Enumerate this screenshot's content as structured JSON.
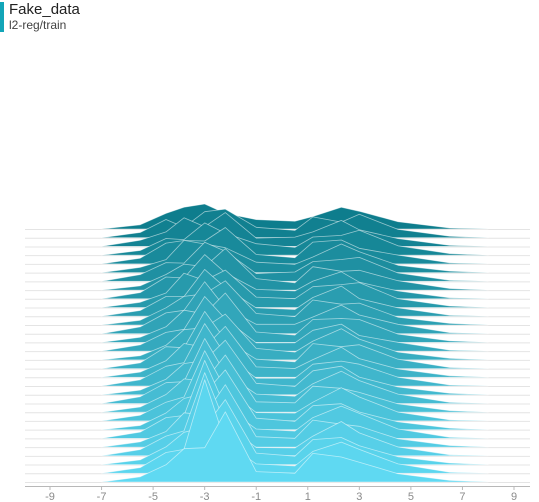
{
  "header": {
    "title": "Fake_data",
    "subtitle": "l2-reg/train",
    "accent_color": "#12a5b8"
  },
  "chart_data": {
    "type": "ridgeline",
    "title": "Fake_data",
    "subtitle": "l2-reg/train",
    "xlim": [
      -10,
      10
    ],
    "x_ticks": [
      -9,
      -7,
      -5,
      -3,
      -1,
      1,
      3,
      5,
      7,
      9
    ],
    "color_back": "#0e7d8d",
    "color_front": "#5fd9f2",
    "stroke_color": "#ffffff",
    "grid": false,
    "series_count": 30,
    "x": [
      -7,
      -5.5,
      -4.5,
      -3.8,
      -3,
      -2.2,
      -1,
      0.5,
      1.2,
      2.3,
      3,
      4.5,
      6.5,
      8
    ],
    "series": [
      {
        "values": [
          0.0,
          0.08,
          0.3,
          0.42,
          0.48,
          0.3,
          0.18,
          0.15,
          0.24,
          0.42,
          0.34,
          0.14,
          0.02,
          0.0
        ]
      },
      {
        "values": [
          0.0,
          0.1,
          0.35,
          0.2,
          0.5,
          0.55,
          0.2,
          0.14,
          0.4,
          0.3,
          0.45,
          0.16,
          0.03,
          0.0
        ]
      },
      {
        "values": [
          0.0,
          0.12,
          0.28,
          0.55,
          0.38,
          0.65,
          0.16,
          0.18,
          0.28,
          0.5,
          0.32,
          0.15,
          0.02,
          0.0
        ]
      },
      {
        "values": [
          0.0,
          0.09,
          0.32,
          0.3,
          0.62,
          0.42,
          0.22,
          0.15,
          0.35,
          0.38,
          0.48,
          0.18,
          0.03,
          0.0
        ]
      },
      {
        "values": [
          0.0,
          0.11,
          0.4,
          0.45,
          0.44,
          0.7,
          0.18,
          0.12,
          0.42,
          0.46,
          0.3,
          0.17,
          0.02,
          0.0
        ]
      },
      {
        "values": [
          0.0,
          0.1,
          0.25,
          0.62,
          0.55,
          0.48,
          0.2,
          0.16,
          0.3,
          0.55,
          0.4,
          0.14,
          0.03,
          0.0
        ]
      },
      {
        "values": [
          0.0,
          0.13,
          0.36,
          0.35,
          0.75,
          0.58,
          0.15,
          0.18,
          0.38,
          0.42,
          0.46,
          0.16,
          0.02,
          0.0
        ]
      },
      {
        "values": [
          0.0,
          0.08,
          0.3,
          0.5,
          0.45,
          0.8,
          0.22,
          0.14,
          0.45,
          0.36,
          0.38,
          0.18,
          0.03,
          0.0
        ]
      },
      {
        "values": [
          0.0,
          0.12,
          0.42,
          0.4,
          0.85,
          0.5,
          0.18,
          0.15,
          0.34,
          0.52,
          0.32,
          0.15,
          0.02,
          0.0
        ]
      },
      {
        "values": [
          0.0,
          0.1,
          0.28,
          0.66,
          0.52,
          0.72,
          0.2,
          0.17,
          0.4,
          0.44,
          0.48,
          0.17,
          0.03,
          0.0
        ]
      },
      {
        "values": [
          0.0,
          0.11,
          0.38,
          0.38,
          0.9,
          0.55,
          0.16,
          0.13,
          0.36,
          0.58,
          0.34,
          0.16,
          0.02,
          0.0
        ]
      },
      {
        "values": [
          0.0,
          0.09,
          0.33,
          0.55,
          0.6,
          0.85,
          0.22,
          0.16,
          0.48,
          0.4,
          0.42,
          0.15,
          0.03,
          0.0
        ]
      },
      {
        "values": [
          0.0,
          0.13,
          0.4,
          0.45,
          1.0,
          0.5,
          0.18,
          0.18,
          0.32,
          0.55,
          0.36,
          0.18,
          0.02,
          0.0
        ]
      },
      {
        "values": [
          0.0,
          0.1,
          0.3,
          0.62,
          0.55,
          0.95,
          0.2,
          0.14,
          0.44,
          0.46,
          0.44,
          0.16,
          0.03,
          0.0
        ]
      },
      {
        "values": [
          0.0,
          0.12,
          0.36,
          0.42,
          1.05,
          0.62,
          0.16,
          0.16,
          0.4,
          0.52,
          0.3,
          0.17,
          0.02,
          0.0
        ]
      },
      {
        "values": [
          0.0,
          0.08,
          0.28,
          0.58,
          0.62,
          0.88,
          0.22,
          0.15,
          0.36,
          0.6,
          0.4,
          0.15,
          0.03,
          0.0
        ]
      },
      {
        "values": [
          0.0,
          0.11,
          0.42,
          0.4,
          1.1,
          0.55,
          0.18,
          0.13,
          0.48,
          0.42,
          0.46,
          0.18,
          0.02,
          0.0
        ]
      },
      {
        "values": [
          0.0,
          0.1,
          0.32,
          0.65,
          0.58,
          0.98,
          0.2,
          0.17,
          0.34,
          0.58,
          0.36,
          0.16,
          0.03,
          0.0
        ]
      },
      {
        "values": [
          0.0,
          0.12,
          0.38,
          0.45,
          1.2,
          0.6,
          0.15,
          0.15,
          0.42,
          0.48,
          0.42,
          0.17,
          0.02,
          0.0
        ]
      },
      {
        "values": [
          0.0,
          0.09,
          0.3,
          0.6,
          0.66,
          1.05,
          0.22,
          0.16,
          0.46,
          0.55,
          0.34,
          0.15,
          0.03,
          0.0
        ]
      },
      {
        "values": [
          0.0,
          0.13,
          0.4,
          0.42,
          1.25,
          0.58,
          0.18,
          0.14,
          0.38,
          0.62,
          0.44,
          0.18,
          0.02,
          0.0
        ]
      },
      {
        "values": [
          0.0,
          0.1,
          0.34,
          0.64,
          0.6,
          1.1,
          0.2,
          0.18,
          0.5,
          0.46,
          0.38,
          0.16,
          0.03,
          0.0
        ]
      },
      {
        "values": [
          0.0,
          0.11,
          0.36,
          0.46,
          1.35,
          0.62,
          0.16,
          0.15,
          0.36,
          0.64,
          0.46,
          0.17,
          0.02,
          0.0
        ]
      },
      {
        "values": [
          0.0,
          0.08,
          0.32,
          0.6,
          0.7,
          1.15,
          0.22,
          0.16,
          0.46,
          0.5,
          0.34,
          0.15,
          0.03,
          0.0
        ]
      },
      {
        "values": [
          0.0,
          0.12,
          0.4,
          0.44,
          1.5,
          0.6,
          0.18,
          0.14,
          0.4,
          0.62,
          0.48,
          0.18,
          0.02,
          0.0
        ]
      },
      {
        "values": [
          0.0,
          0.1,
          0.3,
          0.66,
          0.62,
          1.2,
          0.2,
          0.17,
          0.52,
          0.44,
          0.4,
          0.16,
          0.03,
          0.0
        ]
      },
      {
        "values": [
          0.0,
          0.12,
          0.38,
          0.48,
          1.6,
          0.62,
          0.16,
          0.15,
          0.38,
          0.66,
          0.44,
          0.17,
          0.02,
          0.0
        ]
      },
      {
        "values": [
          0.0,
          0.09,
          0.34,
          0.62,
          0.72,
          1.25,
          0.22,
          0.16,
          0.48,
          0.52,
          0.36,
          0.15,
          0.03,
          0.0
        ]
      },
      {
        "values": [
          0.0,
          0.11,
          0.4,
          0.46,
          1.8,
          0.6,
          0.18,
          0.14,
          0.42,
          0.6,
          0.46,
          0.18,
          0.02,
          0.0
        ]
      },
      {
        "values": [
          0.0,
          0.1,
          0.33,
          0.64,
          0.66,
          1.35,
          0.2,
          0.17,
          0.55,
          0.48,
          0.38,
          0.16,
          0.03,
          0.0
        ]
      }
    ]
  }
}
